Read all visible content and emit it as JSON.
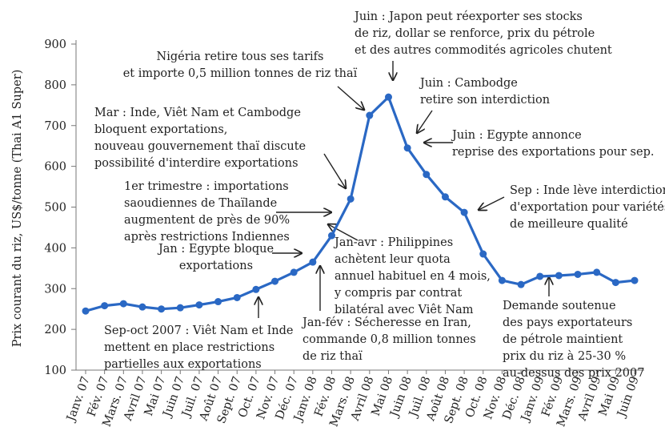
{
  "chart_data": {
    "type": "line",
    "y_label": "Prix courant du riz, US$/tonne (Thai A1 Super)",
    "categories": [
      "Janv. 07",
      "Fév. 07",
      "Mars. 07",
      "Avril 07",
      "Mai 07",
      "Juin 07",
      "Juil. 07",
      "Août 07",
      "Sept. 07",
      "Oct. 07",
      "Nov. 07",
      "Déc. 07",
      "Janv. 08",
      "Fév. 08",
      "Mars. 08",
      "Avril 08",
      "Mai 08",
      "Juin 08",
      "Juil. 08",
      "Août 08",
      "Sept. 08",
      "Oct. 08",
      "Nov. 08",
      "Déc. 08",
      "Janv. 09",
      "Fév. 09",
      "Mars. 09",
      "Avril 09",
      "Mai 09",
      "Juin 09"
    ],
    "values": [
      245,
      258,
      263,
      255,
      250,
      253,
      260,
      268,
      278,
      298,
      318,
      340,
      365,
      430,
      520,
      725,
      770,
      645,
      580,
      525,
      487,
      385,
      320,
      310,
      330,
      332,
      335,
      340,
      315,
      320
    ],
    "color": "#2a68c4",
    "ylim": [
      100,
      900
    ],
    "yticks": [
      100,
      200,
      300,
      400,
      500,
      600,
      700,
      800,
      900
    ],
    "annotations": [
      {
        "lines": [
          "Juin : Japon peut réexporter ses stocks",
          "de riz, dollar se renforce, prix du pétrole",
          "et des autres commodités agricoles chutent"
        ]
      },
      {
        "lines": [
          "Nigéria retire tous ses tarifs",
          "et importe 0,5 million tonnes de riz thaï"
        ]
      },
      {
        "lines": [
          "Juin : Cambodge",
          "retire son interdiction"
        ]
      },
      {
        "lines": [
          "Mar : Inde, Viêt Nam et Cambodge",
          "bloquent exportations,",
          "nouveau gouvernement thaï discute",
          "possibilité d'interdire exportations"
        ]
      },
      {
        "lines": [
          "Juin : Egypte annonce",
          "reprise des exportations pour sep."
        ]
      },
      {
        "lines": [
          "1er trimestre : importations",
          "saoudiennes de Thaïlande",
          "augmentent de près de 90%",
          "après restrictions Indiennes"
        ]
      },
      {
        "lines": [
          "Sep : Inde lève interdiction",
          "d'exportation pour variétés",
          "de meilleure qualité"
        ]
      },
      {
        "lines": [
          "Jan : Egypte bloque",
          "exportations"
        ]
      },
      {
        "lines": [
          "Jan-avr : Philippines",
          "achètent leur quota",
          "annuel habituel en 4 mois,",
          "y compris par contrat",
          "bilatéral avec Viêt Nam"
        ]
      },
      {
        "lines": [
          "Jan-fév : Sécheresse en Iran,",
          "commande 0,8 million tonnes",
          "de riz thaï"
        ]
      },
      {
        "lines": [
          "Demande soutenue",
          "des pays exportateurs",
          "de pétrole maintient",
          "prix du riz à 25-30 %",
          "au-dessus des prix 2007"
        ]
      },
      {
        "lines": [
          "Sep-oct 2007 : Viêt Nam et Inde",
          "mettent en place restrictions",
          "partielles aux exportations"
        ]
      }
    ]
  }
}
